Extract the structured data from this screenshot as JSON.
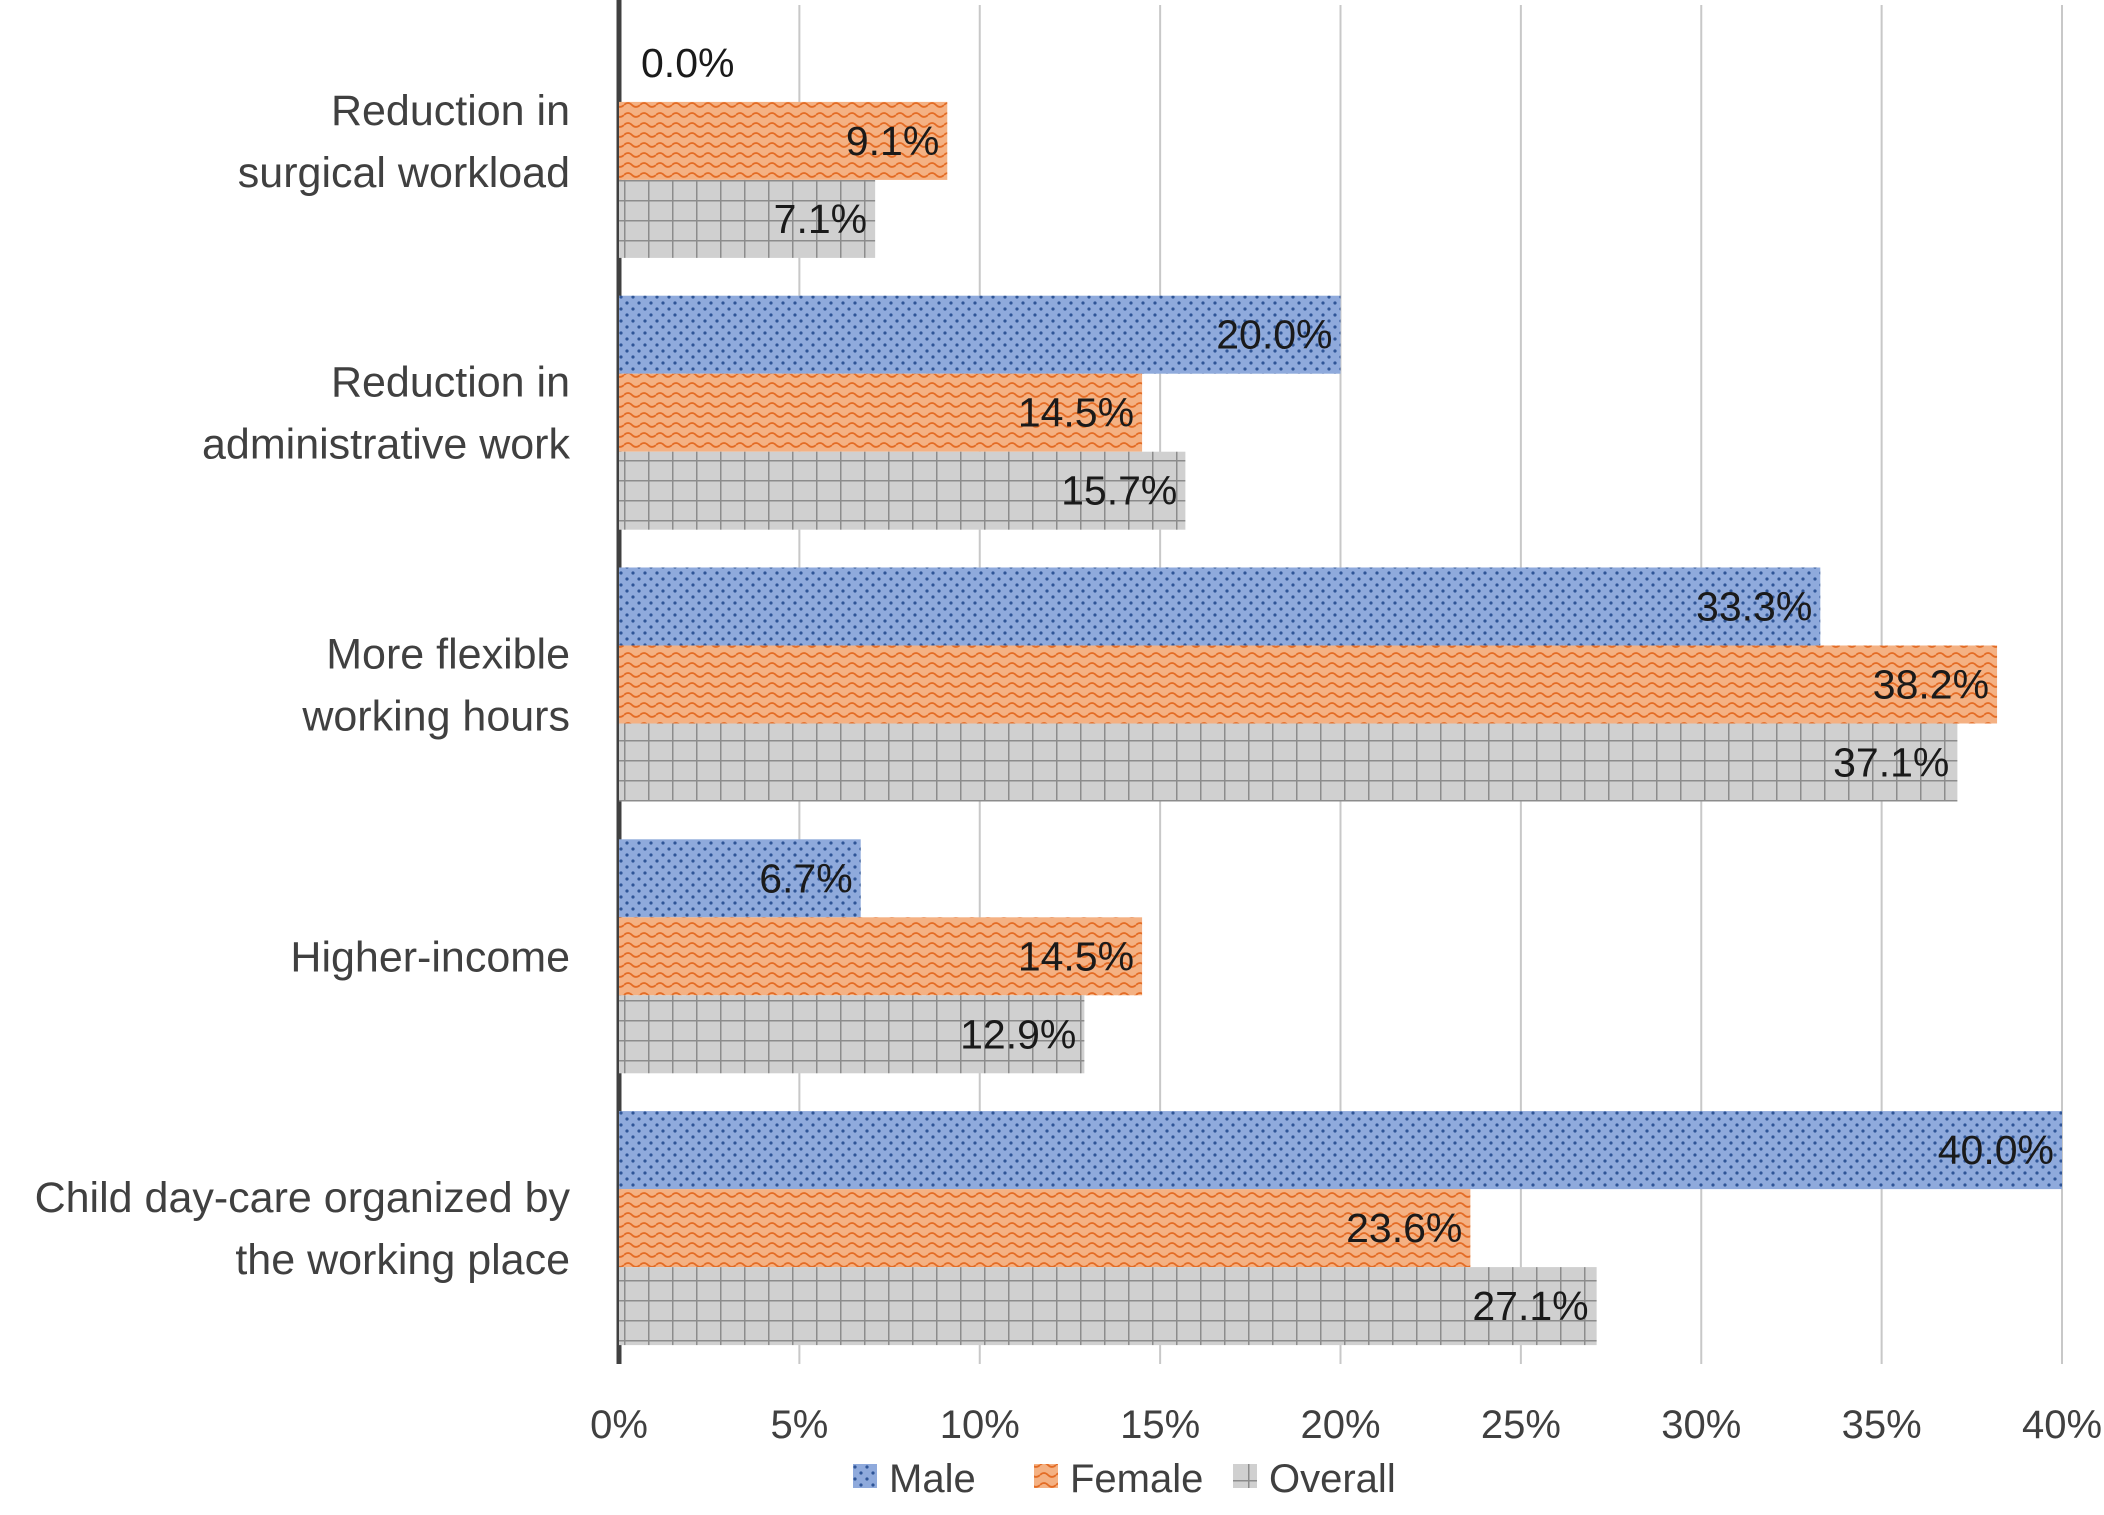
{
  "chart_data": {
    "type": "bar",
    "orientation": "horizontal",
    "categories": [
      [
        "Reduction in",
        "surgical workload"
      ],
      [
        "Reduction in",
        "administrative work"
      ],
      [
        "More flexible",
        "working hours"
      ],
      [
        "Higher-income"
      ],
      [
        "Child day-care organized by",
        "the working place"
      ]
    ],
    "series": [
      {
        "name": "Male",
        "values": [
          0.0,
          20.0,
          33.3,
          6.7,
          40.0
        ],
        "labels": [
          "0.0%",
          "20.0%",
          "33.3%",
          "6.7%",
          "40.0%"
        ],
        "color": "#4472c4",
        "fill": "#8faadc",
        "pattern": "dots"
      },
      {
        "name": "Female",
        "values": [
          9.1,
          14.5,
          38.2,
          14.5,
          23.6
        ],
        "labels": [
          "9.1%",
          "14.5%",
          "38.2%",
          "14.5%",
          "23.6%"
        ],
        "color": "#ed7d31",
        "fill": "#f4b183",
        "pattern": "waves"
      },
      {
        "name": "Overall",
        "values": [
          7.1,
          15.7,
          37.1,
          12.9,
          27.1
        ],
        "labels": [
          "7.1%",
          "15.7%",
          "37.1%",
          "12.9%",
          "27.1%"
        ],
        "color": "#a5a5a5",
        "fill": "#d0d0d0",
        "pattern": "grid"
      }
    ],
    "xlim": [
      0,
      40
    ],
    "xticks": [
      0,
      5,
      10,
      15,
      20,
      25,
      30,
      35,
      40
    ],
    "xtick_labels": [
      "0%",
      "5%",
      "10%",
      "15%",
      "20%",
      "25%",
      "30%",
      "35%",
      "40%"
    ],
    "grid": true,
    "legend_position": "bottom",
    "title": "",
    "xlabel": "",
    "ylabel": ""
  }
}
